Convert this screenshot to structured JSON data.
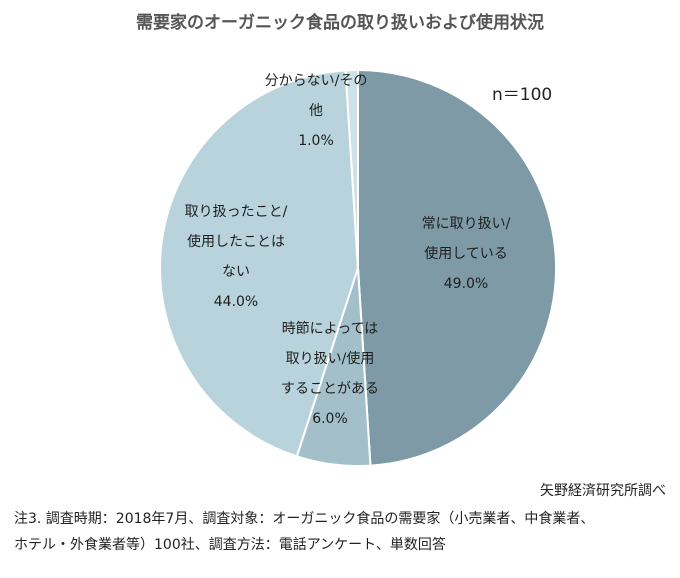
{
  "title": "需要家のオーガニック食品の取り扱いおよび使用状況",
  "n_label": "n＝100",
  "source": "矢野経済研究所調べ",
  "note_lines": [
    "注3. 調査時期：2018年7月、調査対象：オーガニック食品の需要家（小売業者、中食業者、",
    "ホテル・外食業者等）100社、調査方法：電話アンケート、単数回答"
  ],
  "chart_data": {
    "type": "pie",
    "title": "需要家のオーガニック食品の取り扱いおよび使用状況",
    "slices": [
      {
        "lines": [
          "常に取り扱い/",
          "使用している"
        ],
        "percent_label": "49.0%",
        "value": 49.0,
        "color": "#7d9aa6"
      },
      {
        "lines": [
          "時節によっては",
          "取り扱い/使用",
          "することがある"
        ],
        "percent_label": "6.0%",
        "value": 6.0,
        "color": "#a3bfca"
      },
      {
        "lines": [
          "取り扱ったこと/",
          "使用したことは",
          "ない"
        ],
        "percent_label": "44.0%",
        "value": 44.0,
        "color": "#b9d3dc"
      },
      {
        "lines": [
          "分からない/その",
          "他"
        ],
        "percent_label": "1.0%",
        "value": 1.0,
        "color": "#cfe1e8"
      }
    ]
  }
}
